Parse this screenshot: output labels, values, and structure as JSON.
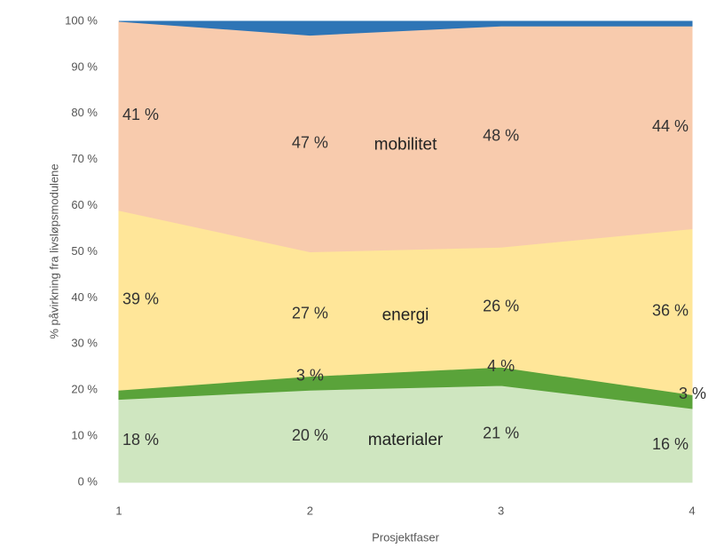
{
  "chart_data": {
    "type": "stacked_area",
    "xlabel": "Prosjektfaser",
    "ylabel": "% påvirkning fra livsløpsmodulene",
    "x": [
      1,
      2,
      3,
      4
    ],
    "xlim": [
      1,
      4
    ],
    "xticks": [
      1,
      2,
      3,
      4
    ],
    "ylim": [
      0,
      100
    ],
    "yticks": [
      {
        "value": 0,
        "label": "0 %"
      },
      {
        "value": 10,
        "label": "10 %"
      },
      {
        "value": 20,
        "label": "20 %"
      },
      {
        "value": 30,
        "label": "30 %"
      },
      {
        "value": 40,
        "label": "40 %"
      },
      {
        "value": 50,
        "label": "50 %"
      },
      {
        "value": 60,
        "label": "60 %"
      },
      {
        "value": 70,
        "label": "70 %"
      },
      {
        "value": 80,
        "label": "80 %"
      },
      {
        "value": 90,
        "label": "90 %"
      },
      {
        "value": 100,
        "label": "100 %"
      }
    ],
    "series": [
      {
        "name": "materialer",
        "color": "#cfe6c0",
        "values": [
          18,
          20,
          21,
          16
        ],
        "value_labels": [
          "18 %",
          "20 %",
          "21 %",
          "16 %"
        ]
      },
      {
        "color": "#5aa33a",
        "values": [
          2,
          3,
          4,
          3
        ],
        "value_labels": [
          null,
          "3 %",
          "4 %",
          "3 %"
        ]
      },
      {
        "name": "energi",
        "color": "#ffe699",
        "values": [
          39,
          27,
          26,
          36
        ],
        "value_labels": [
          "39 %",
          "27 %",
          "26 %",
          "36 %"
        ]
      },
      {
        "name": "mobilitet",
        "color": "#f8cbad",
        "values": [
          41,
          47,
          48,
          44
        ],
        "value_labels": [
          "41 %",
          "47 %",
          "48 %",
          "44 %"
        ]
      },
      {
        "color": "#2e75b6",
        "values": [
          0,
          3,
          1,
          1
        ]
      }
    ]
  }
}
